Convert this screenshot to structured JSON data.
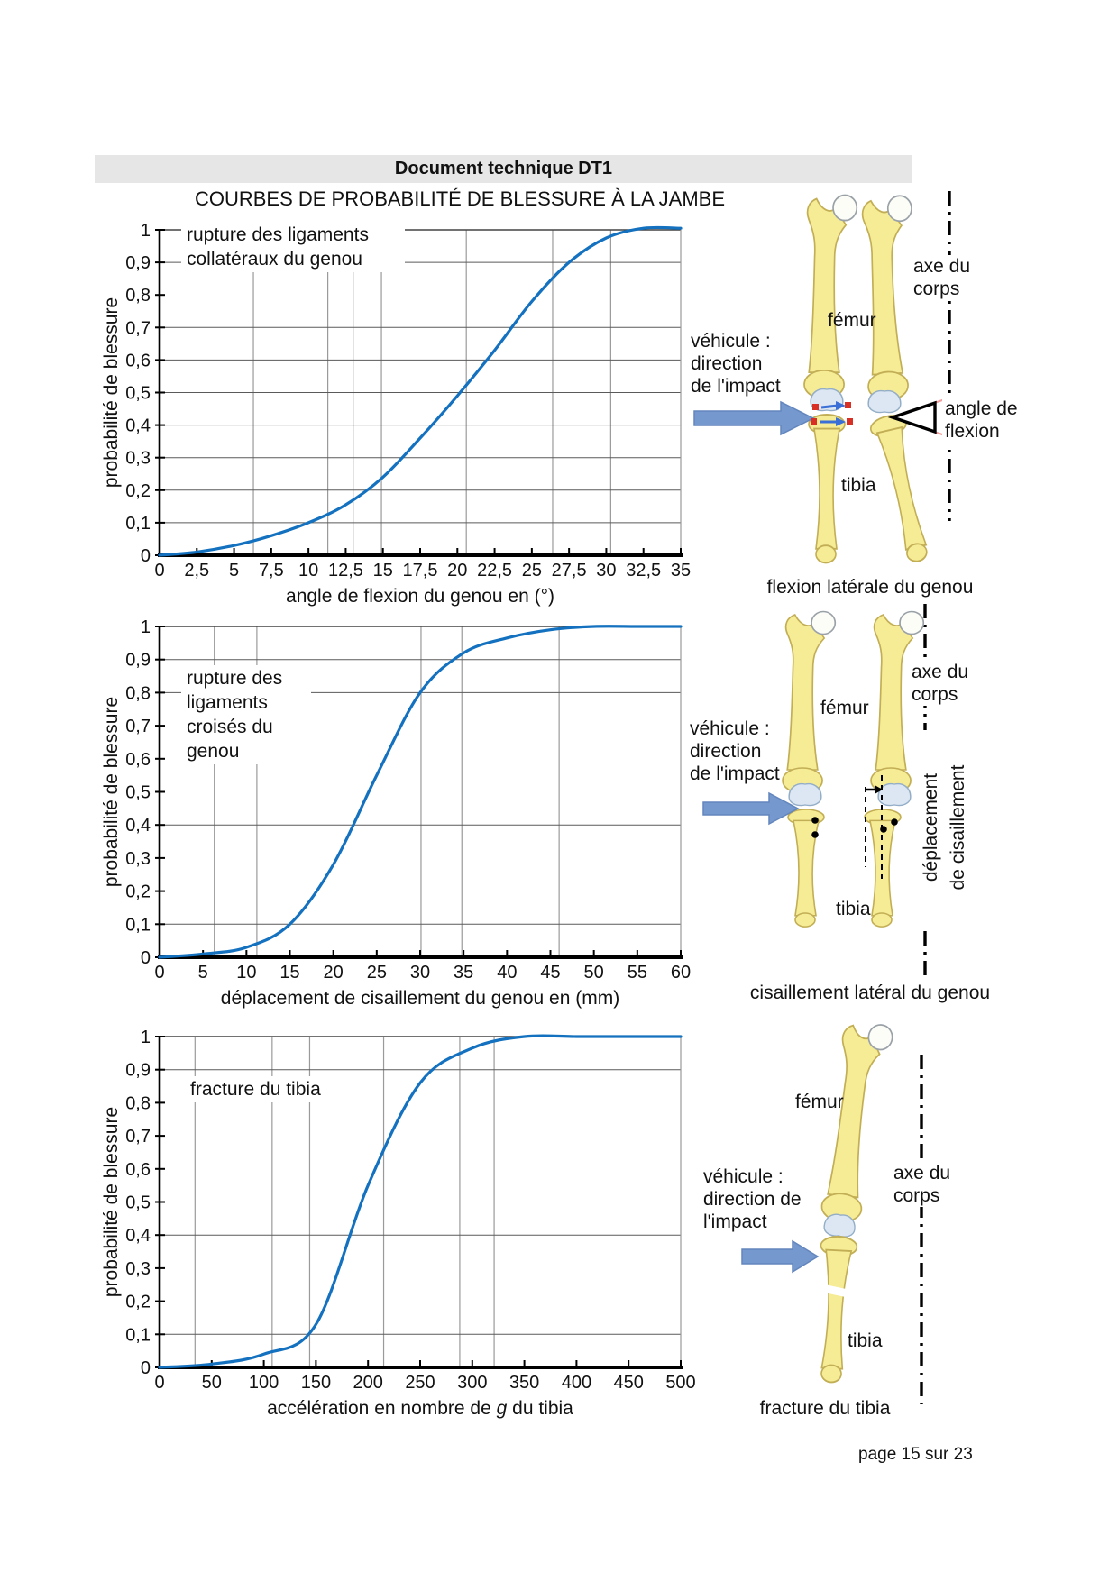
{
  "header": {
    "bar_title": "Document technique DT1",
    "main_title": "COURBES DE PROBABILITÉ DE BLESSURE À LA JAMBE"
  },
  "footer": {
    "page_indicator": "page 15 sur 23"
  },
  "colors": {
    "curve": "#1371bf",
    "grid_dark": "#5a5a5a",
    "grid_light": "#9a9a9a",
    "axis": "#000000",
    "header_bar_bg": "#e6e6e6",
    "arrow_fill": "#7598cf",
    "arrow_stroke": "#6386bd",
    "bone_fill": "#f6ec96",
    "bone_stroke": "#c2ae55",
    "head_fill": "#fdfdf8",
    "head_stroke": "#9aa2a8",
    "cartilage_fill": "#dce7f3",
    "cartilage_stroke": "#94aec8",
    "accent_red": "#d93025",
    "accent_blue": "#3a6fd8"
  },
  "chart_data": [
    {
      "type": "line",
      "annotation": "rupture des ligaments\ncollatéraux du genou",
      "ylabel": "probabilité de blessure",
      "xlabel_parts": [
        {
          "text": "angle de flexion du genou en (°)",
          "italic": false
        }
      ],
      "xlim": [
        0,
        35
      ],
      "ylim": [
        0,
        1
      ],
      "x": [
        0,
        2.5,
        5,
        7.5,
        10,
        12.5,
        15,
        17.5,
        20,
        22.5,
        25,
        27.5,
        30,
        32.5,
        35
      ],
      "y": [
        0,
        0.01,
        0.03,
        0.06,
        0.1,
        0.155,
        0.24,
        0.36,
        0.49,
        0.63,
        0.78,
        0.9,
        0.975,
        1.005,
        1.005
      ],
      "x_tick_labels": [
        "0",
        "2,5",
        "5",
        "7,5",
        "10",
        "12,5",
        "15",
        "17,5",
        "20",
        "22,5",
        "25",
        "27,5",
        "30",
        "32,5",
        "35"
      ],
      "y_tick_labels": [
        "1",
        "0,9",
        "0,8",
        "0,7",
        "0,6",
        "0,5",
        "0,4",
        "0,3",
        "0,2",
        "0,1",
        "0"
      ],
      "hgrid": [
        0.1,
        0.2,
        0.3,
        0.4,
        0.5,
        0.6,
        0.7,
        0.9
      ],
      "vgrid": [
        6.3,
        11.3,
        13,
        14.9,
        20.6,
        26.4,
        30.3
      ],
      "legend": "none"
    },
    {
      "type": "line",
      "annotation": "rupture des\nligaments\ncroisés du\ngenou",
      "ylabel": "probabilité de blessure",
      "xlabel_parts": [
        {
          "text": "déplacement de cisaillement du genou en (mm)",
          "italic": false
        }
      ],
      "xlim": [
        0,
        60
      ],
      "ylim": [
        0,
        1
      ],
      "x": [
        0,
        5,
        10,
        15,
        20,
        25,
        30,
        35,
        40,
        45,
        50,
        55,
        60
      ],
      "y": [
        0,
        0.01,
        0.03,
        0.1,
        0.28,
        0.55,
        0.8,
        0.92,
        0.965,
        0.99,
        1.0,
        1.0,
        1.0
      ],
      "x_tick_labels": [
        "0",
        "5",
        "10",
        "15",
        "20",
        "25",
        "30",
        "35",
        "40",
        "45",
        "50",
        "55",
        "60"
      ],
      "y_tick_labels": [
        "1",
        "0,9",
        "0,8",
        "0,7",
        "0,6",
        "0,5",
        "0,4",
        "0,3",
        "0,2",
        "0,1",
        "0"
      ],
      "hgrid": [
        0.1,
        0.4,
        0.8,
        0.9
      ],
      "vgrid": [
        6.3,
        11.2,
        30.1,
        34.8,
        46
      ],
      "legend": "none"
    },
    {
      "type": "line",
      "annotation": "fracture du tibia",
      "ylabel": "probabilité de blessure",
      "xlabel_parts": [
        {
          "text": "accélération en nombre de ",
          "italic": false
        },
        {
          "text": "g",
          "italic": true
        },
        {
          "text": " du tibia",
          "italic": false
        }
      ],
      "xlim": [
        0,
        500
      ],
      "ylim": [
        0,
        1
      ],
      "x": [
        0,
        50,
        100,
        150,
        200,
        250,
        300,
        350,
        400,
        450,
        500
      ],
      "y": [
        0,
        0.01,
        0.04,
        0.13,
        0.55,
        0.86,
        0.965,
        1.0,
        1.0,
        1.0,
        1.0
      ],
      "x_tick_labels": [
        "0",
        "50",
        "100",
        "150",
        "200",
        "250",
        "300",
        "350",
        "400",
        "450",
        "500"
      ],
      "y_tick_labels": [
        "1",
        "0,9",
        "0,8",
        "0,7",
        "0,6",
        "0,5",
        "0,4",
        "0,3",
        "0,2",
        "0,1",
        "0"
      ],
      "hgrid": [
        0.1,
        0.4,
        0.9
      ],
      "vgrid": [
        34,
        108,
        144,
        215,
        288,
        321
      ],
      "legend": "none"
    }
  ],
  "diagrams": [
    {
      "caption": "flexion latérale du genou",
      "label_axis": "axe du\ncorps",
      "label_femur": "fémur",
      "label_impact": "véhicule :\ndirection\nde l'impact",
      "label_angle": "angle de\nflexion",
      "label_tibia": "tibia"
    },
    {
      "caption": "cisaillement latéral du genou",
      "label_axis": "axe du\ncorps",
      "label_femur": "fémur",
      "label_impact": "véhicule :\ndirection\nde l'impact",
      "label_shear": "déplacement\nde cisaillement",
      "label_tibia": "tibia"
    },
    {
      "caption": "fracture du tibia",
      "label_axis": "axe du\ncorps",
      "label_femur": "fémur",
      "label_impact": "véhicule :\ndirection de\nl'impact",
      "label_tibia": "tibia"
    }
  ]
}
